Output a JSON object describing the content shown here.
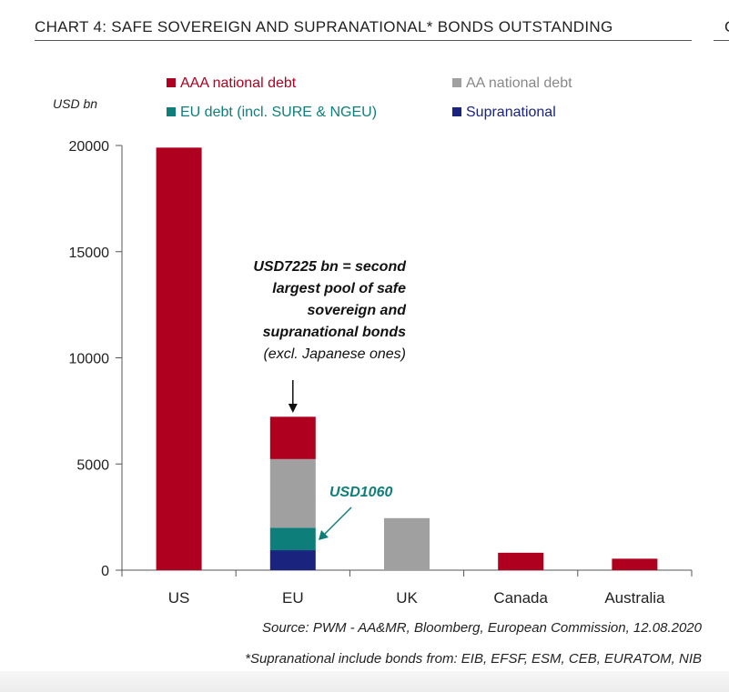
{
  "title": "CHART 4: SAFE SOVEREIGN AND SUPRANATIONAL* BONDS OUTSTANDING",
  "title_cut_glyph": "C",
  "chart_data": {
    "type": "bar",
    "stacked": true,
    "ylabel": "USD bn",
    "ylim": [
      0,
      20000
    ],
    "yticks": [
      0,
      5000,
      10000,
      15000,
      20000
    ],
    "categories": [
      "US",
      "EU",
      "UK",
      "Canada",
      "Australia"
    ],
    "series": [
      {
        "name": "Supranational",
        "color": "#1a237e",
        "values": [
          0,
          940,
          0,
          0,
          0
        ]
      },
      {
        "name": "EU debt (incl. SURE & NGEU)",
        "color": "#0e7e7a",
        "values": [
          0,
          1060,
          0,
          0,
          0
        ]
      },
      {
        "name": "AA national debt",
        "color": "#a0a0a0",
        "values": [
          0,
          3230,
          2450,
          0,
          0
        ]
      },
      {
        "name": "AAA national debt",
        "color": "#b00020",
        "values": [
          19900,
          1995,
          0,
          820,
          540
        ]
      }
    ],
    "legend": {
      "placement": "top",
      "order": [
        "AAA national debt",
        "AA national debt",
        "EU debt (incl. SURE & NGEU)",
        "Supranational"
      ]
    },
    "annotations": {
      "main": [
        "USD7225 bn = second",
        "largest pool of safe",
        "sovereign and",
        "supranational bonds"
      ],
      "main_sub": "(excl. Japanese ones)",
      "eu_debt_label": "USD1060",
      "eu_debt_color": "#0e7e7a"
    }
  },
  "source": "Source: PWM - AA&MR, Bloomberg, European Commission, 12.08.2020",
  "footnote": "*Supranational include bonds from: EIB, EFSF, ESM, CEB, EURATOM, NIB"
}
